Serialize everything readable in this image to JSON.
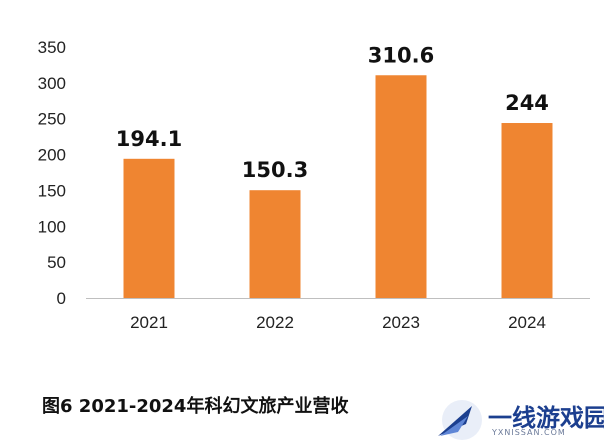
{
  "caption": "图6  2021-2024年科幻文旅产业营收",
  "watermark": {
    "name": "一线游戏园",
    "url": "YXNISSAN.COM"
  },
  "colors": {
    "bar": "#ef8531",
    "axis": "#bfbfbf"
  },
  "chart_data": {
    "type": "bar",
    "categories": [
      "2021",
      "2022",
      "2023",
      "2024"
    ],
    "values": [
      194.1,
      150.3,
      310.6,
      244
    ],
    "data_labels": [
      "194.1",
      "150.3",
      "310.6",
      "244"
    ],
    "yticks": [
      0,
      50,
      100,
      150,
      200,
      250,
      300,
      350
    ],
    "ylim": [
      0,
      350
    ],
    "grid": false,
    "title": "图6  2021-2024年科幻文旅产业营收"
  }
}
